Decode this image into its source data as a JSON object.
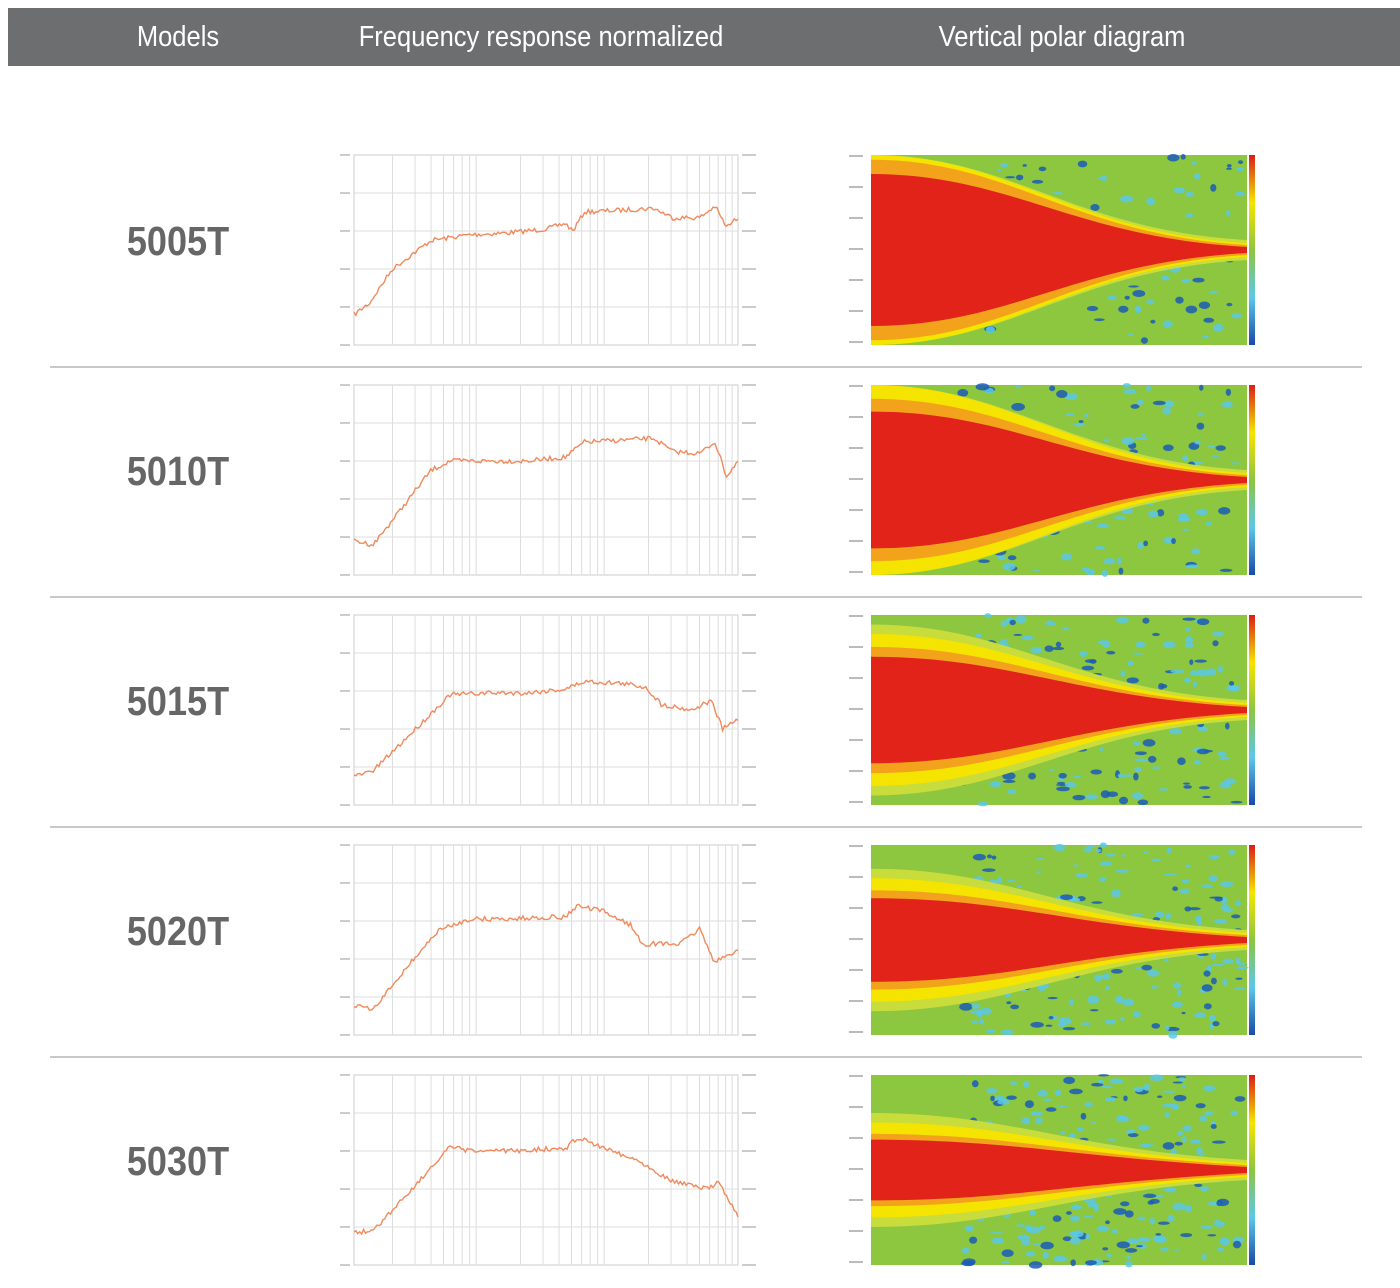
{
  "header": {
    "columns": [
      "Models",
      "Frequency response normalized",
      "Vertical polar diagram"
    ]
  },
  "table": {
    "rows": [
      [
        "5005T"
      ],
      [
        "5010T"
      ],
      [
        "5015T"
      ],
      [
        "5020T"
      ],
      [
        "5030T"
      ]
    ]
  }
}
